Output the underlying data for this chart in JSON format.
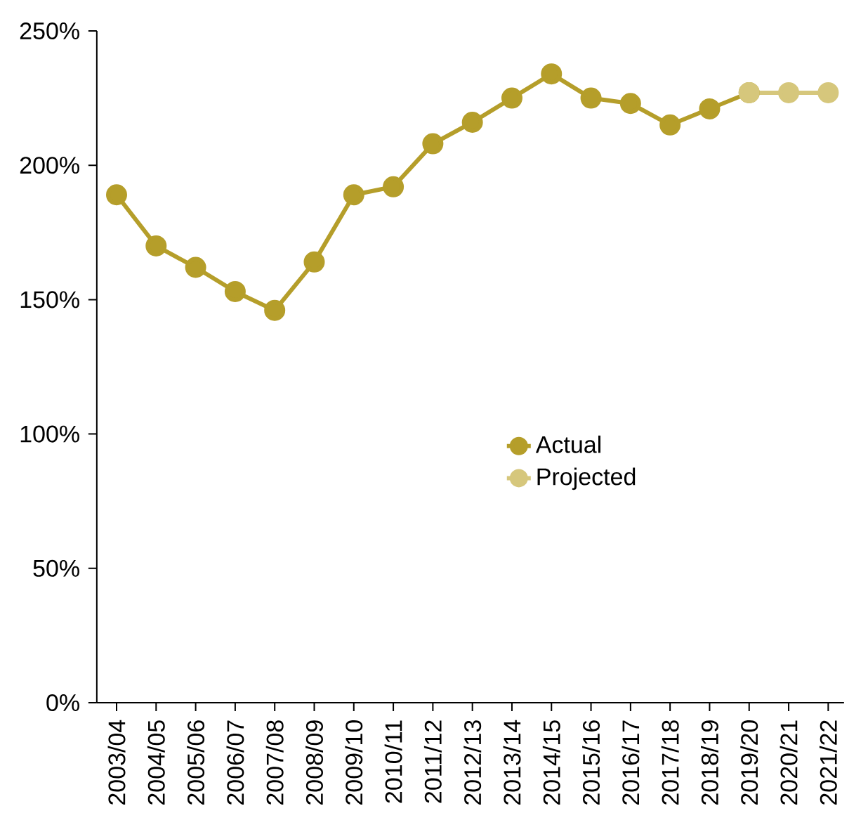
{
  "chart_data": {
    "type": "line",
    "categories": [
      "2003/04",
      "2004/05",
      "2005/06",
      "2006/07",
      "2007/08",
      "2008/09",
      "2009/10",
      "2010/11",
      "2011/12",
      "2012/13",
      "2013/14",
      "2014/15",
      "2015/16",
      "2016/17",
      "2017/18",
      "2018/19",
      "2019/20",
      "2020/21",
      "2021/22"
    ],
    "series": [
      {
        "name": "Actual",
        "color": "#b59e2a",
        "values": [
          189,
          170,
          162,
          153,
          146,
          164,
          189,
          192,
          208,
          216,
          225,
          234,
          225,
          223,
          215,
          221,
          227,
          null,
          null
        ]
      },
      {
        "name": "Projected",
        "color": "#d6c77c",
        "values": [
          null,
          null,
          null,
          null,
          null,
          null,
          null,
          null,
          null,
          null,
          null,
          null,
          null,
          null,
          null,
          null,
          227,
          227,
          227
        ]
      }
    ],
    "ylim": [
      0,
      250
    ],
    "yticks": [
      {
        "value": 0,
        "label": "0%"
      },
      {
        "value": 50,
        "label": "50%"
      },
      {
        "value": 100,
        "label": "100%"
      },
      {
        "value": 150,
        "label": "150%"
      },
      {
        "value": 200,
        "label": "200%"
      },
      {
        "value": 250,
        "label": "250%"
      }
    ],
    "grid": false,
    "legend": "center",
    "marker": "circle",
    "line_style": "solid"
  }
}
